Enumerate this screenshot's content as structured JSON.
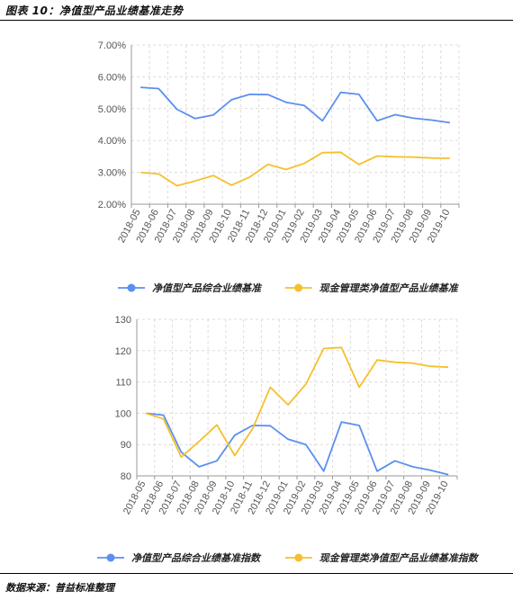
{
  "title": "图表 10：净值型产品业绩基准走势",
  "source": "数据来源：普益标准整理",
  "colors": {
    "blue": "#5B8FF0",
    "yellow": "#F5C02E",
    "grid": "#dcdcdc",
    "axis": "#999999"
  },
  "chart_data": [
    {
      "type": "line",
      "categories": [
        "2018-05",
        "2018-06",
        "2018-07",
        "2018-08",
        "2018-09",
        "2018-10",
        "2018-11",
        "2018-12",
        "2019-01",
        "2019-02",
        "2019-03",
        "2019-04",
        "2019-05",
        "2019-06",
        "2019-07",
        "2019-08",
        "2019-09",
        "2019-10"
      ],
      "ylim": [
        2.0,
        7.0
      ],
      "yticks": [
        "2.00%",
        "3.00%",
        "4.00%",
        "5.00%",
        "6.00%",
        "7.00%"
      ],
      "grid": true,
      "legend_position": "bottom",
      "series": [
        {
          "name": "净值型产品综合业绩基准",
          "color": "#5B8FF0",
          "values": [
            5.67,
            5.63,
            4.98,
            4.69,
            4.8,
            5.28,
            5.45,
            5.44,
            5.2,
            5.1,
            4.62,
            5.51,
            5.45,
            4.62,
            4.81,
            4.7,
            4.64,
            4.56
          ]
        },
        {
          "name": "现金管理类净值型产品业绩基准",
          "color": "#F5C02E",
          "values": [
            3.0,
            2.95,
            2.58,
            2.73,
            2.9,
            2.6,
            2.85,
            3.25,
            3.09,
            3.28,
            3.62,
            3.63,
            3.25,
            3.51,
            3.49,
            3.48,
            3.45,
            3.44
          ]
        }
      ]
    },
    {
      "type": "line",
      "categories": [
        "2018-05",
        "2018-06",
        "2018-07",
        "2018-08",
        "2018-09",
        "2018-10",
        "2018-11",
        "2018-12",
        "2019-01",
        "2019-02",
        "2019-03",
        "2019-04",
        "2019-05",
        "2019-06",
        "2019-07",
        "2019-08",
        "2019-09",
        "2019-10"
      ],
      "ylim": [
        80,
        130
      ],
      "yticks": [
        "80",
        "90",
        "100",
        "110",
        "120",
        "130"
      ],
      "grid": true,
      "legend_position": "bottom",
      "series": [
        {
          "name": "净值型产品综合业绩基准指数",
          "color": "#5B8FF0",
          "values": [
            100,
            99.4,
            87.6,
            82.9,
            84.8,
            93.0,
            96.1,
            96.0,
            91.7,
            90.0,
            81.5,
            97.2,
            96.1,
            81.5,
            84.8,
            82.9,
            81.8,
            80.4
          ]
        },
        {
          "name": "现金管理类净值型产品业绩基准指数",
          "color": "#F5C02E",
          "values": [
            100,
            98.2,
            86.0,
            91.0,
            96.3,
            86.5,
            95.0,
            108.3,
            102.7,
            109.3,
            120.7,
            121.0,
            108.3,
            117.0,
            116.3,
            116.0,
            115.0,
            114.7
          ]
        }
      ]
    }
  ]
}
